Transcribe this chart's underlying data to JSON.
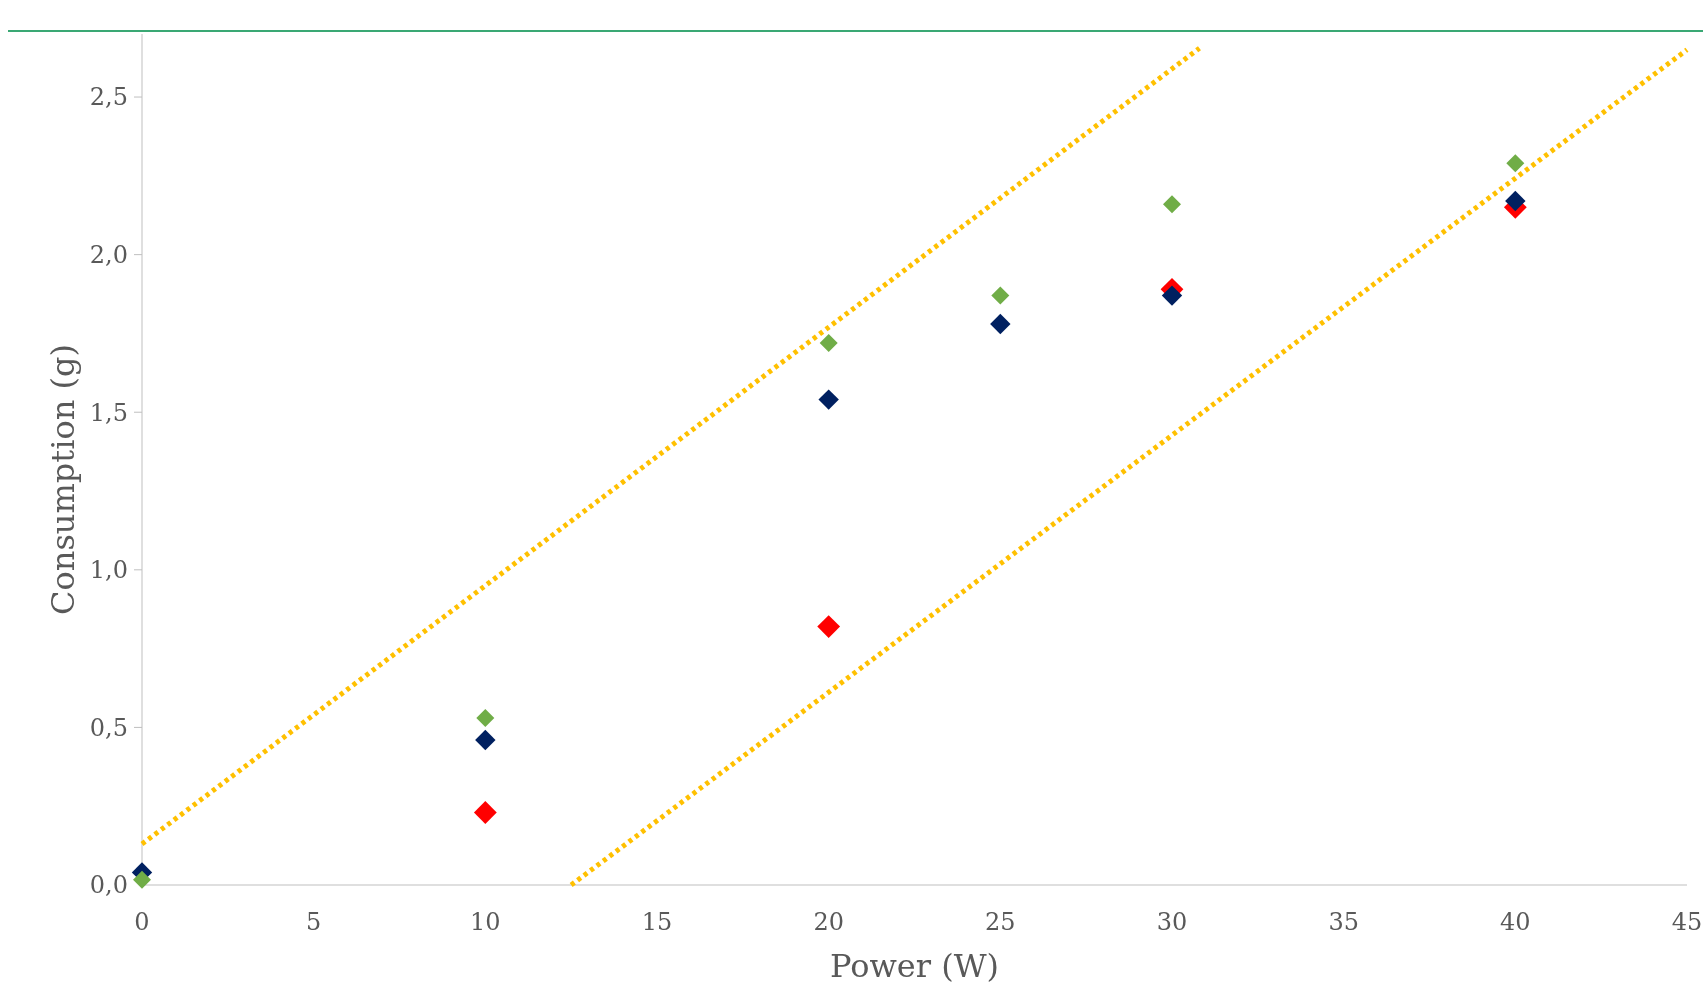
{
  "chart_data": {
    "type": "scatter",
    "xlabel": "Power (W)",
    "ylabel": "Consumption (g)",
    "xlim": [
      0,
      45
    ],
    "xticks": [
      0,
      5,
      10,
      15,
      20,
      25,
      30,
      35,
      40,
      45
    ],
    "ylim": [
      0,
      2.7
    ],
    "yticks": [
      {
        "value": 0,
        "label": "0,0"
      },
      {
        "value": 0.5,
        "label": "0,5"
      },
      {
        "value": 1,
        "label": "1,0"
      },
      {
        "value": 1.5,
        "label": "1,5"
      },
      {
        "value": 2,
        "label": "2,0"
      },
      {
        "value": 2.5,
        "label": "2,5"
      }
    ],
    "grid": false,
    "legend": false,
    "marker": "diamond",
    "x": [
      0,
      10,
      20,
      25,
      30,
      40
    ],
    "series": [
      {
        "color": "#ff0000",
        "values": [
          null,
          0.23,
          0.82,
          null,
          1.89,
          2.15
        ]
      },
      {
        "color": "#002060",
        "values": [
          0.04,
          0.46,
          1.54,
          1.78,
          1.87,
          2.17
        ]
      },
      {
        "color": "#70ad47",
        "values": [
          0.017,
          0.53,
          1.72,
          1.87,
          2.16,
          2.29
        ]
      },
      {
        "type": "line",
        "color": "#ffc000",
        "line_style": "dotted",
        "marker": "none",
        "x": [
          0,
          30.8
        ],
        "values": [
          0.13,
          2.655
        ]
      },
      {
        "type": "line",
        "color": "#ffc000",
        "line_style": "dotted",
        "marker": "none",
        "x": [
          12.5,
          45
        ],
        "values": [
          0,
          2.65
        ]
      }
    ]
  }
}
